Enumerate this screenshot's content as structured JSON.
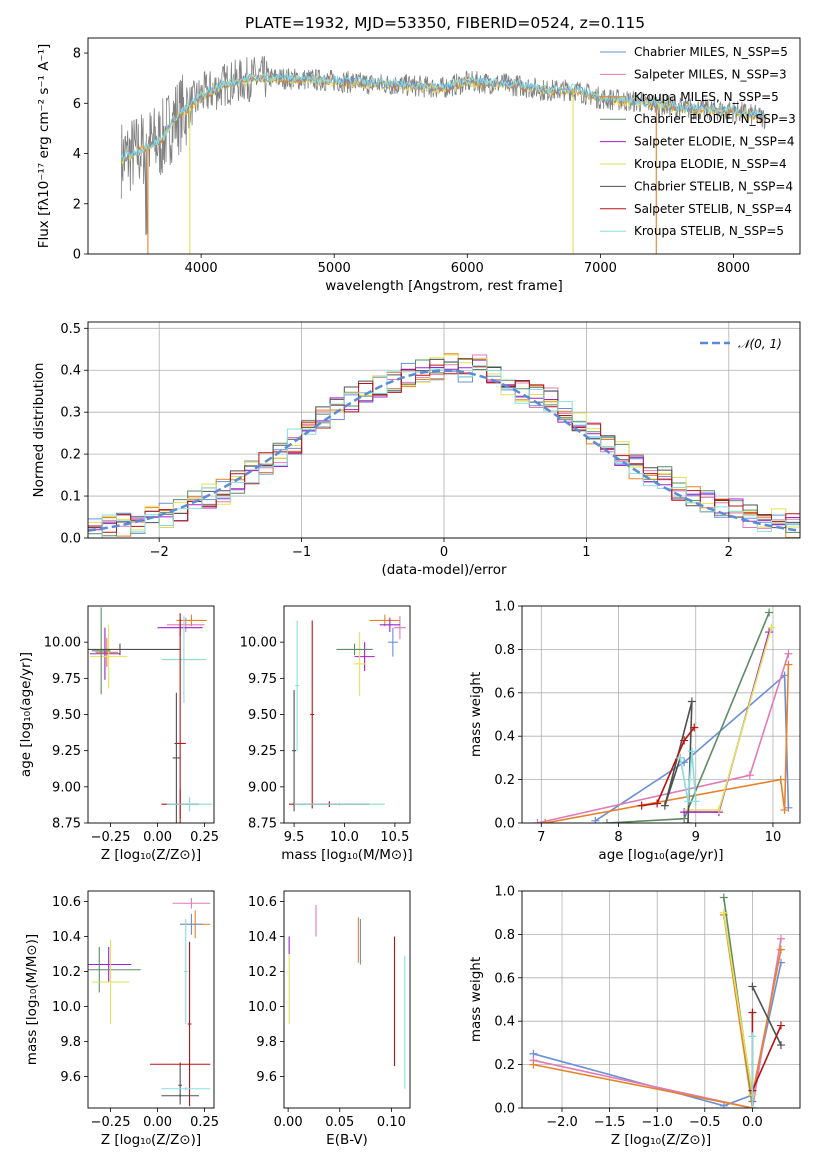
{
  "title": "PLATE=1932, MJD=53350, FIBERID=0524, z=0.115",
  "colors": {
    "chabrier_miles": "#6a8fd8",
    "salpeter_miles": "#e07bb8",
    "kroupa_miles": "#e6822a",
    "chabrier_elodie": "#5e8a64",
    "salpeter_elodie": "#a020d0",
    "kroupa_elodie": "#e2e25a",
    "chabrier_stelib": "#505050",
    "salpeter_stelib": "#b81414",
    "kroupa_stelib": "#88dede",
    "data_spectrum": "#808080",
    "normal_curve": "#5b8bd5"
  },
  "chart_data": [
    {
      "id": "spectrum",
      "type": "line",
      "xlabel": "wavelength [Angstrom, rest frame]",
      "ylabel": "Flux [fλ10⁻¹⁷ erg cm⁻² s⁻¹ A⁻¹]",
      "xlim": [
        3150,
        8500
      ],
      "ylim": [
        0,
        8.6
      ],
      "xticks": [
        4000,
        5000,
        6000,
        7000,
        8000
      ],
      "yticks": [
        0,
        2,
        4,
        6,
        8
      ],
      "legend": [
        "Chabrier MILES, N_SSP=5",
        "Salpeter MILES, N_SSP=3",
        "Kroupa MILES, N_SSP=5",
        "Chabrier ELODIE, N_SSP=3",
        "Salpeter ELODIE, N_SSP=4",
        "Kroupa ELODIE, N_SSP=4",
        "Chabrier STELIB, N_SSP=4",
        "Salpeter STELIB, N_SSP=4",
        "Kroupa STELIB, N_SSP=5"
      ],
      "legend_position": "right",
      "continuum": {
        "x": [
          3400,
          3500,
          3600,
          3700,
          3800,
          3900,
          4000,
          4200,
          4400,
          4600,
          4800,
          5000,
          5200,
          5400,
          5600,
          5800,
          6000,
          6200,
          6400,
          6600,
          6800,
          7000,
          7200,
          7400,
          7600,
          7800,
          8000,
          8240
        ],
        "y": [
          3.8,
          4.0,
          4.3,
          4.5,
          5.4,
          5.8,
          6.3,
          6.8,
          7.0,
          7.0,
          6.95,
          6.9,
          6.8,
          6.75,
          6.7,
          6.6,
          6.85,
          6.8,
          6.7,
          6.5,
          6.55,
          6.2,
          6.1,
          6.0,
          5.8,
          5.75,
          5.7,
          5.4
        ]
      }
    },
    {
      "id": "residual_histogram",
      "type": "line",
      "xlabel": "(data-model)/error",
      "ylabel": "Normed distribution",
      "xlim": [
        -2.5,
        2.5
      ],
      "ylim": [
        0,
        0.515
      ],
      "xticks": [
        -2,
        -1,
        0,
        1,
        2
      ],
      "yticks": [
        0.0,
        0.1,
        0.2,
        0.3,
        0.4,
        0.5
      ],
      "legend": [
        "𝒩(0, 1)"
      ],
      "legend_position": "top-right",
      "bin_centers": [
        -2.45,
        -2.35,
        -2.25,
        -2.15,
        -2.05,
        -1.95,
        -1.85,
        -1.75,
        -1.65,
        -1.55,
        -1.45,
        -1.35,
        -1.25,
        -1.15,
        -1.05,
        -0.95,
        -0.85,
        -0.75,
        -0.65,
        -0.55,
        -0.45,
        -0.35,
        -0.25,
        -0.15,
        -0.05,
        0.05,
        0.15,
        0.25,
        0.35,
        0.45,
        0.55,
        0.65,
        0.75,
        0.85,
        0.95,
        1.05,
        1.15,
        1.25,
        1.35,
        1.45,
        1.55,
        1.65,
        1.75,
        1.85,
        1.95,
        2.05,
        2.15,
        2.25,
        2.35,
        2.45
      ],
      "bin_values": [
        0.02,
        0.025,
        0.03,
        0.035,
        0.05,
        0.055,
        0.07,
        0.085,
        0.1,
        0.11,
        0.13,
        0.155,
        0.18,
        0.2,
        0.23,
        0.26,
        0.29,
        0.31,
        0.33,
        0.35,
        0.36,
        0.37,
        0.39,
        0.395,
        0.4,
        0.41,
        0.4,
        0.42,
        0.38,
        0.37,
        0.35,
        0.34,
        0.33,
        0.3,
        0.27,
        0.25,
        0.23,
        0.2,
        0.17,
        0.15,
        0.14,
        0.12,
        0.1,
        0.09,
        0.075,
        0.065,
        0.05,
        0.045,
        0.04,
        0.03
      ]
    },
    {
      "id": "age_vs_Z",
      "type": "scatter",
      "xlabel": "Z [log₁₀(Z/Z⊙)]",
      "ylabel": "age  [log₁₀(age/yr)]",
      "xlim": [
        -0.37,
        0.3
      ],
      "ylim": [
        8.75,
        10.25
      ],
      "xticks": [
        -0.25,
        0.0,
        0.25
      ],
      "yticks": [
        8.75,
        9.0,
        9.25,
        9.5,
        9.75,
        10.0
      ],
      "points": [
        {
          "x": 0.15,
          "y": 10.12,
          "dx": 0.1,
          "dy": 0.05,
          "c": "salpeter_miles"
        },
        {
          "x": 0.18,
          "y": 10.15,
          "dx": 0.08,
          "dy": 0.04,
          "c": "kroupa_miles"
        },
        {
          "x": 0.12,
          "y": 10.1,
          "dx": 0.12,
          "dy": 0.06,
          "c": "salpeter_elodie"
        },
        {
          "x": -0.27,
          "y": 9.93,
          "dx": 0.06,
          "dy": 0.1,
          "c": "kroupa_miles"
        },
        {
          "x": -0.28,
          "y": 9.92,
          "dx": 0.08,
          "dy": 0.18,
          "c": "salpeter_elodie"
        },
        {
          "x": -0.26,
          "y": 9.9,
          "dx": 0.1,
          "dy": 0.22,
          "c": "kroupa_elodie"
        },
        {
          "x": -0.3,
          "y": 9.94,
          "dx": 0.05,
          "dy": 0.3,
          "c": "chabrier_elodie"
        },
        {
          "x": -0.2,
          "y": 9.95,
          "dx": 0.32,
          "dy": 0.04,
          "c": "chabrier_stelib"
        },
        {
          "x": 0.14,
          "y": 9.88,
          "dx": 0.12,
          "dy": 0.3,
          "c": "kroupa_stelib"
        },
        {
          "x": 0.12,
          "y": 9.3,
          "dx": 0.03,
          "dy": 0.9,
          "c": "salpeter_stelib"
        },
        {
          "x": 0.1,
          "y": 9.2,
          "dx": 0.02,
          "dy": 0.45,
          "c": "chabrier_stelib"
        },
        {
          "x": 0.12,
          "y": 8.88,
          "dx": 0.1,
          "dy": 0.1,
          "c": "salpeter_stelib"
        },
        {
          "x": 0.17,
          "y": 8.88,
          "dx": 0.12,
          "dy": 0.05,
          "c": "kroupa_stelib"
        }
      ]
    },
    {
      "id": "age_vs_mass",
      "type": "scatter",
      "xlabel": "mass [log₁₀(M/M⊙)]",
      "ylabel": "",
      "xlim": [
        9.4,
        10.65
      ],
      "ylim": [
        8.75,
        10.25
      ],
      "xticks": [
        9.5,
        10.0,
        10.5
      ],
      "yticks": [
        8.75,
        9.0,
        9.25,
        9.5,
        9.75,
        10.0
      ],
      "points": [
        {
          "x": 10.4,
          "y": 10.15,
          "dx": 0.15,
          "dy": 0.04,
          "c": "kroupa_miles"
        },
        {
          "x": 10.55,
          "y": 10.1,
          "dx": 0.06,
          "dy": 0.08,
          "c": "salpeter_miles"
        },
        {
          "x": 10.45,
          "y": 10.12,
          "dx": 0.1,
          "dy": 0.05,
          "c": "salpeter_elodie"
        },
        {
          "x": 10.48,
          "y": 10.0,
          "dx": 0.05,
          "dy": 0.1,
          "c": "chabrier_miles"
        },
        {
          "x": 10.2,
          "y": 9.9,
          "dx": 0.1,
          "dy": 0.1,
          "c": "salpeter_elodie"
        },
        {
          "x": 10.15,
          "y": 9.85,
          "dx": 0.06,
          "dy": 0.22,
          "c": "kroupa_elodie"
        },
        {
          "x": 10.1,
          "y": 9.95,
          "dx": 0.18,
          "dy": 0.04,
          "c": "chabrier_elodie"
        },
        {
          "x": 9.53,
          "y": 9.7,
          "dx": 0.02,
          "dy": 0.45,
          "c": "kroupa_stelib"
        },
        {
          "x": 9.5,
          "y": 9.25,
          "dx": 0.02,
          "dy": 0.42,
          "c": "chabrier_stelib"
        },
        {
          "x": 9.68,
          "y": 9.5,
          "dx": 0.02,
          "dy": 0.65,
          "c": "salpeter_stelib"
        },
        {
          "x": 9.85,
          "y": 8.88,
          "dx": 0.4,
          "dy": 0.02,
          "c": "salpeter_stelib"
        },
        {
          "x": 9.95,
          "y": 8.88,
          "dx": 0.45,
          "dy": 0.01,
          "c": "kroupa_stelib"
        }
      ]
    },
    {
      "id": "mass_weight_vs_age",
      "type": "line",
      "xlabel": "age  [log₁₀(age/yr)]",
      "ylabel": "mass weight",
      "xlim": [
        6.75,
        10.35
      ],
      "ylim": [
        0,
        1.0
      ],
      "xticks": [
        7,
        8,
        9,
        10
      ],
      "yticks": [
        0.0,
        0.2,
        0.4,
        0.6,
        0.8,
        1.0
      ],
      "series": [
        {
          "c": "chabrier_miles",
          "x": [
            7.7,
            8.85,
            10.15,
            10.2
          ],
          "y": [
            0.01,
            0.28,
            0.68,
            0.07
          ]
        },
        {
          "c": "salpeter_miles",
          "x": [
            6.95,
            9.7,
            10.2
          ],
          "y": [
            0.0,
            0.22,
            0.78
          ]
        },
        {
          "c": "kroupa_miles",
          "x": [
            7.05,
            10.1,
            10.15,
            10.2
          ],
          "y": [
            0.0,
            0.2,
            0.06,
            0.73
          ]
        },
        {
          "c": "chabrier_elodie",
          "x": [
            7.85,
            8.85,
            9.95
          ],
          "y": [
            0.0,
            0.02,
            0.97
          ]
        },
        {
          "c": "salpeter_elodie",
          "x": [
            8.85,
            9.3,
            9.95
          ],
          "y": [
            0.05,
            0.05,
            0.88
          ]
        },
        {
          "c": "kroupa_elodie",
          "x": [
            8.9,
            9.3,
            9.98
          ],
          "y": [
            0.06,
            0.06,
            0.9
          ]
        },
        {
          "c": "chabrier_stelib",
          "x": [
            8.9,
            8.95,
            8.6,
            8.8
          ],
          "y": [
            0.0,
            0.56,
            0.08,
            0.3
          ]
        },
        {
          "c": "salpeter_stelib",
          "x": [
            8.3,
            8.5,
            8.85,
            8.98
          ],
          "y": [
            0.08,
            0.09,
            0.38,
            0.44
          ]
        },
        {
          "c": "kroupa_stelib",
          "x": [
            8.8,
            8.9,
            8.95,
            9.0
          ],
          "y": [
            0.3,
            0.1,
            0.33,
            0.1
          ]
        }
      ]
    },
    {
      "id": "mass_vs_Z",
      "type": "scatter",
      "xlabel": "Z [log₁₀(Z/Z⊙)]",
      "ylabel": "mass [log₁₀(M/M⊙)]",
      "xlim": [
        -0.37,
        0.3
      ],
      "ylim": [
        9.42,
        10.66
      ],
      "xticks": [
        -0.25,
        0.0,
        0.25
      ],
      "yticks": [
        9.6,
        9.8,
        10.0,
        10.2,
        10.4,
        10.6
      ],
      "points": [
        {
          "x": 0.18,
          "y": 10.59,
          "dx": 0.1,
          "dy": 0.03,
          "c": "salpeter_miles"
        },
        {
          "x": 0.2,
          "y": 10.47,
          "dx": 0.08,
          "dy": 0.08,
          "c": "kroupa_miles"
        },
        {
          "x": 0.18,
          "y": 10.47,
          "dx": 0.06,
          "dy": 0.06,
          "c": "chabrier_miles"
        },
        {
          "x": -0.26,
          "y": 10.24,
          "dx": 0.12,
          "dy": 0.1,
          "c": "salpeter_elodie"
        },
        {
          "x": -0.31,
          "y": 10.21,
          "dx": 0.22,
          "dy": 0.13,
          "c": "chabrier_elodie"
        },
        {
          "x": -0.25,
          "y": 10.14,
          "dx": 0.1,
          "dy": 0.24,
          "c": "kroupa_elodie"
        },
        {
          "x": 0.15,
          "y": 10.2,
          "dx": 0.01,
          "dy": 0.3,
          "c": "kroupa_stelib"
        },
        {
          "x": 0.17,
          "y": 9.9,
          "dx": 0.01,
          "dy": 0.47,
          "c": "salpeter_stelib"
        },
        {
          "x": 0.12,
          "y": 9.55,
          "dx": 0.01,
          "dy": 0.11,
          "c": "chabrier_stelib"
        },
        {
          "x": 0.12,
          "y": 9.67,
          "dx": 0.16,
          "dy": 0.01,
          "c": "salpeter_stelib"
        },
        {
          "x": 0.15,
          "y": 9.53,
          "dx": 0.13,
          "dy": 0.01,
          "c": "kroupa_stelib"
        },
        {
          "x": 0.12,
          "y": 9.49,
          "dx": 0.1,
          "dy": 0.01,
          "c": "chabrier_stelib"
        }
      ]
    },
    {
      "id": "mass_vs_EBV",
      "type": "scatter",
      "xlabel": "E(B-V)",
      "ylabel": "",
      "xlim": [
        -0.004,
        0.118
      ],
      "ylim": [
        9.42,
        10.66
      ],
      "xticks": [
        0.0,
        0.05,
        0.1
      ],
      "yticks": [
        9.6,
        9.8,
        10.0,
        10.2,
        10.4,
        10.6
      ],
      "points": [
        {
          "x": 0.027,
          "y": 10.49,
          "dx": 0,
          "dy": 0.09,
          "c": "salpeter_miles"
        },
        {
          "x": 0.07,
          "y": 10.37,
          "dx": 0,
          "dy": 0.13,
          "c": "chabrier_miles"
        },
        {
          "x": 0.068,
          "y": 10.38,
          "dx": 0,
          "dy": 0.13,
          "c": "kroupa_miles"
        },
        {
          "x": 0.001,
          "y": 10.35,
          "dx": 0,
          "dy": 0.05,
          "c": "salpeter_elodie"
        },
        {
          "x": 0.001,
          "y": 10.1,
          "dx": 0,
          "dy": 0.2,
          "c": "kroupa_elodie"
        },
        {
          "x": 0.103,
          "y": 10.03,
          "dx": 0,
          "dy": 0.37,
          "c": "salpeter_stelib"
        },
        {
          "x": 0.113,
          "y": 9.91,
          "dx": 0,
          "dy": 0.38,
          "c": "kroupa_stelib"
        }
      ]
    },
    {
      "id": "mass_weight_vs_Z",
      "type": "line",
      "xlabel": "Z [log₁₀(Z/Z⊙)]",
      "ylabel": "mass weight",
      "xlim": [
        -2.42,
        0.5
      ],
      "ylim": [
        0,
        1.0
      ],
      "xticks": [
        -2.0,
        -1.5,
        -1.0,
        -0.5,
        0.0
      ],
      "yticks": [
        0.0,
        0.2,
        0.4,
        0.6,
        0.8,
        1.0
      ],
      "series": [
        {
          "c": "chabrier_miles",
          "x": [
            -2.3,
            -0.3,
            0.0,
            0.3
          ],
          "y": [
            0.25,
            0.01,
            0.06,
            0.67
          ]
        },
        {
          "c": "salpeter_miles",
          "x": [
            -2.3,
            0.0,
            0.3
          ],
          "y": [
            0.22,
            0.0,
            0.78
          ]
        },
        {
          "c": "kroupa_miles",
          "x": [
            -2.3,
            0.0,
            -0.3,
            0.0,
            0.3
          ],
          "y": [
            0.2,
            0.0,
            0.89,
            0.06,
            0.73
          ]
        },
        {
          "c": "chabrier_elodie",
          "x": [
            -0.3,
            0.0
          ],
          "y": [
            0.97,
            0.03
          ]
        },
        {
          "c": "kroupa_elodie",
          "x": [
            -0.3,
            0.0
          ],
          "y": [
            0.9,
            0.06
          ]
        },
        {
          "c": "chabrier_stelib",
          "x": [
            0.0,
            0.3
          ],
          "y": [
            0.56,
            0.29
          ]
        },
        {
          "c": "salpeter_stelib",
          "x": [
            0.0,
            0.0,
            0.3
          ],
          "y": [
            0.44,
            0.08,
            0.38
          ]
        },
        {
          "c": "kroupa_stelib",
          "x": [
            0.0,
            0.0
          ],
          "y": [
            0.33,
            0.0
          ]
        }
      ]
    }
  ]
}
